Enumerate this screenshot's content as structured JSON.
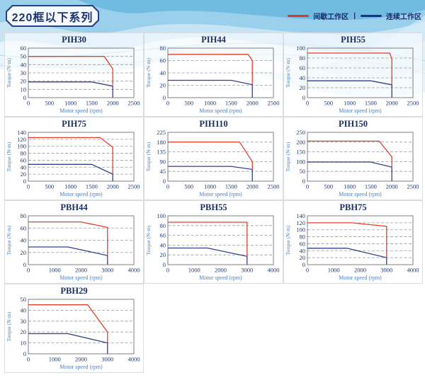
{
  "page": {
    "title": "220框以下系列"
  },
  "legend": {
    "intermittent": {
      "label": "间歇工作区",
      "color": "#d93a22"
    },
    "separator": "|",
    "continuous": {
      "label": "连续工作区",
      "color": "#1b2f8e"
    }
  },
  "colors": {
    "red_line": "#e2402c",
    "blue_line": "#343f8f",
    "grid_dash": "#999999",
    "plot_border": "#8a8a8a",
    "tick_text": "#223a70",
    "axis_label_text": "#4a7ec0"
  },
  "chart_data": [
    {
      "type": "line",
      "title": "PIH30",
      "row": 0,
      "col": 0,
      "xlabel": "Motor speed (rpm)",
      "ylabel": "Torque (N·m)",
      "xlim": [
        0,
        2500
      ],
      "xticks": [
        0,
        500,
        1000,
        1500,
        2000,
        2500
      ],
      "ylim": [
        0,
        60
      ],
      "yticks": [
        0,
        10,
        20,
        30,
        40,
        50,
        60
      ],
      "series": [
        {
          "name": "间歇工作区",
          "color": "red",
          "points": [
            [
              0,
              50
            ],
            [
              1800,
              50
            ],
            [
              2000,
              35
            ],
            [
              2000,
              15
            ]
          ]
        },
        {
          "name": "连续工作区",
          "color": "blue",
          "points": [
            [
              0,
              19
            ],
            [
              1500,
              19
            ],
            [
              2000,
              14
            ],
            [
              2000,
              0
            ]
          ]
        }
      ]
    },
    {
      "type": "line",
      "title": "PIH44",
      "row": 0,
      "col": 1,
      "xlabel": "Motor speed (rpm)",
      "ylabel": "Torque (N·m)",
      "xlim": [
        0,
        2500
      ],
      "xticks": [
        0,
        500,
        1000,
        1500,
        2000,
        2500
      ],
      "ylim": [
        0,
        80
      ],
      "yticks": [
        0,
        20,
        40,
        60,
        80
      ],
      "series": [
        {
          "name": "间歇工作区",
          "color": "red",
          "points": [
            [
              0,
              70
            ],
            [
              1900,
              70
            ],
            [
              2000,
              60
            ],
            [
              2000,
              21
            ]
          ]
        },
        {
          "name": "连续工作区",
          "color": "blue",
          "points": [
            [
              0,
              28
            ],
            [
              1500,
              28
            ],
            [
              2000,
              21
            ],
            [
              2000,
              0
            ]
          ]
        }
      ]
    },
    {
      "type": "line",
      "title": "PIH55",
      "row": 0,
      "col": 2,
      "xlabel": "Motor speed (rpm)",
      "ylabel": "Torque (N·m)",
      "xlim": [
        0,
        2500
      ],
      "xticks": [
        0,
        500,
        1000,
        1500,
        2000,
        2500
      ],
      "ylim": [
        0,
        100
      ],
      "yticks": [
        0,
        20,
        40,
        60,
        80,
        100
      ],
      "series": [
        {
          "name": "间歇工作区",
          "color": "red",
          "points": [
            [
              0,
              90
            ],
            [
              1950,
              90
            ],
            [
              2000,
              78
            ],
            [
              2000,
              26
            ]
          ]
        },
        {
          "name": "连续工作区",
          "color": "blue",
          "points": [
            [
              0,
              34
            ],
            [
              1500,
              34
            ],
            [
              2000,
              26
            ],
            [
              2000,
              0
            ]
          ]
        }
      ]
    },
    {
      "type": "line",
      "title": "PIH75",
      "row": 1,
      "col": 0,
      "xlabel": "Motor speed (rpm)",
      "ylabel": "Torque (N·m)",
      "xlim": [
        0,
        2500
      ],
      "xticks": [
        0,
        500,
        1000,
        1500,
        2000,
        2500
      ],
      "ylim": [
        0,
        140
      ],
      "yticks": [
        0,
        20,
        40,
        60,
        80,
        100,
        120,
        140
      ],
      "series": [
        {
          "name": "间歇工作区",
          "color": "red",
          "points": [
            [
              0,
              125
            ],
            [
              1700,
              125
            ],
            [
              2000,
              97
            ],
            [
              2000,
              20
            ]
          ]
        },
        {
          "name": "连续工作区",
          "color": "blue",
          "points": [
            [
              0,
              48
            ],
            [
              1500,
              48
            ],
            [
              2000,
              20
            ],
            [
              2000,
              0
            ]
          ]
        }
      ]
    },
    {
      "type": "line",
      "title": "PIH110",
      "row": 1,
      "col": 1,
      "xlabel": "Motor speed (rpm)",
      "ylabel": "Torque (N·m)",
      "xlim": [
        0,
        2500
      ],
      "xticks": [
        0,
        500,
        1000,
        1500,
        2000,
        2500
      ],
      "ylim": [
        0,
        225
      ],
      "yticks": [
        0,
        45,
        90,
        135,
        180,
        225
      ],
      "series": [
        {
          "name": "间歇工作区",
          "color": "red",
          "points": [
            [
              0,
              180
            ],
            [
              1700,
              180
            ],
            [
              2000,
              90
            ],
            [
              2000,
              54
            ]
          ]
        },
        {
          "name": "连续工作区",
          "color": "blue",
          "points": [
            [
              0,
              68
            ],
            [
              1500,
              68
            ],
            [
              2000,
              54
            ],
            [
              2000,
              0
            ]
          ]
        }
      ]
    },
    {
      "type": "line",
      "title": "PIH150",
      "row": 1,
      "col": 2,
      "xlabel": "Motor speed (rpm)",
      "ylabel": "Torque (N·m)",
      "xlim": [
        0,
        2500
      ],
      "xticks": [
        0,
        500,
        1000,
        1500,
        2000,
        2500
      ],
      "ylim": [
        0,
        250
      ],
      "yticks": [
        0,
        50,
        100,
        150,
        200,
        250
      ],
      "series": [
        {
          "name": "间歇工作区",
          "color": "red",
          "points": [
            [
              0,
              205
            ],
            [
              1700,
              205
            ],
            [
              2000,
              125
            ],
            [
              2000,
              72
            ]
          ]
        },
        {
          "name": "连续工作区",
          "color": "blue",
          "points": [
            [
              0,
              98
            ],
            [
              1500,
              98
            ],
            [
              2000,
              72
            ],
            [
              2000,
              0
            ]
          ]
        }
      ]
    },
    {
      "type": "line",
      "title": "PBH44",
      "row": 2,
      "col": 0,
      "xlabel": "Motor speed (rpm)",
      "ylabel": "Torque (N·m)",
      "xlim": [
        0,
        4000
      ],
      "xticks": [
        0,
        1000,
        2000,
        3000,
        4000
      ],
      "ylim": [
        0,
        80
      ],
      "yticks": [
        0,
        20,
        40,
        60,
        80
      ],
      "series": [
        {
          "name": "间歇工作区",
          "color": "red",
          "points": [
            [
              0,
              70
            ],
            [
              2000,
              70
            ],
            [
              3000,
              61
            ],
            [
              3000,
              15
            ]
          ]
        },
        {
          "name": "连续工作区",
          "color": "blue",
          "points": [
            [
              0,
              29
            ],
            [
              1500,
              29
            ],
            [
              3000,
              15
            ],
            [
              3000,
              0
            ]
          ]
        }
      ]
    },
    {
      "type": "line",
      "title": "PBH55",
      "row": 2,
      "col": 1,
      "xlabel": "Motor speed (rpm)",
      "ylabel": "Torque (N·m)",
      "xlim": [
        0,
        4000
      ],
      "xticks": [
        0,
        1000,
        2000,
        3000,
        4000
      ],
      "ylim": [
        0,
        100
      ],
      "yticks": [
        0,
        20,
        40,
        60,
        80,
        100
      ],
      "series": [
        {
          "name": "间歇工作区",
          "color": "red",
          "points": [
            [
              0,
              87
            ],
            [
              3000,
              87
            ],
            [
              3000,
              17
            ]
          ]
        },
        {
          "name": "连续工作区",
          "color": "blue",
          "points": [
            [
              0,
              34
            ],
            [
              1500,
              34
            ],
            [
              3000,
              17
            ],
            [
              3000,
              0
            ]
          ]
        }
      ]
    },
    {
      "type": "line",
      "title": "PBH75",
      "row": 2,
      "col": 2,
      "xlabel": "Motor speed (rpm)",
      "ylabel": "Torque (N·m)",
      "xlim": [
        0,
        4000
      ],
      "xticks": [
        0,
        1000,
        2000,
        3000,
        4000
      ],
      "ylim": [
        0,
        140
      ],
      "yticks": [
        0,
        20,
        40,
        60,
        80,
        100,
        120,
        140
      ],
      "series": [
        {
          "name": "间歇工作区",
          "color": "red",
          "points": [
            [
              0,
              120
            ],
            [
              1700,
              120
            ],
            [
              3000,
              110
            ],
            [
              3000,
              20
            ]
          ]
        },
        {
          "name": "连续工作区",
          "color": "blue",
          "points": [
            [
              0,
              47
            ],
            [
              1500,
              47
            ],
            [
              3000,
              20
            ],
            [
              3000,
              0
            ]
          ]
        }
      ]
    },
    {
      "type": "line",
      "title": "PBH29",
      "row": 3,
      "col": 0,
      "xlabel": "Motor speed (rpm)",
      "ylabel": "Torque (N·m)",
      "xlim": [
        0,
        4000
      ],
      "xticks": [
        0,
        1000,
        2000,
        3000,
        4000
      ],
      "ylim": [
        0,
        50
      ],
      "yticks": [
        0,
        10,
        20,
        30,
        40,
        50
      ],
      "series": [
        {
          "name": "间歇工作区",
          "color": "red",
          "points": [
            [
              0,
              45
            ],
            [
              2250,
              45
            ],
            [
              3000,
              20
            ],
            [
              3000,
              10
            ]
          ]
        },
        {
          "name": "连续工作区",
          "color": "blue",
          "points": [
            [
              0,
              18.5
            ],
            [
              1500,
              18.5
            ],
            [
              3000,
              10
            ],
            [
              3000,
              0
            ]
          ]
        }
      ]
    }
  ]
}
